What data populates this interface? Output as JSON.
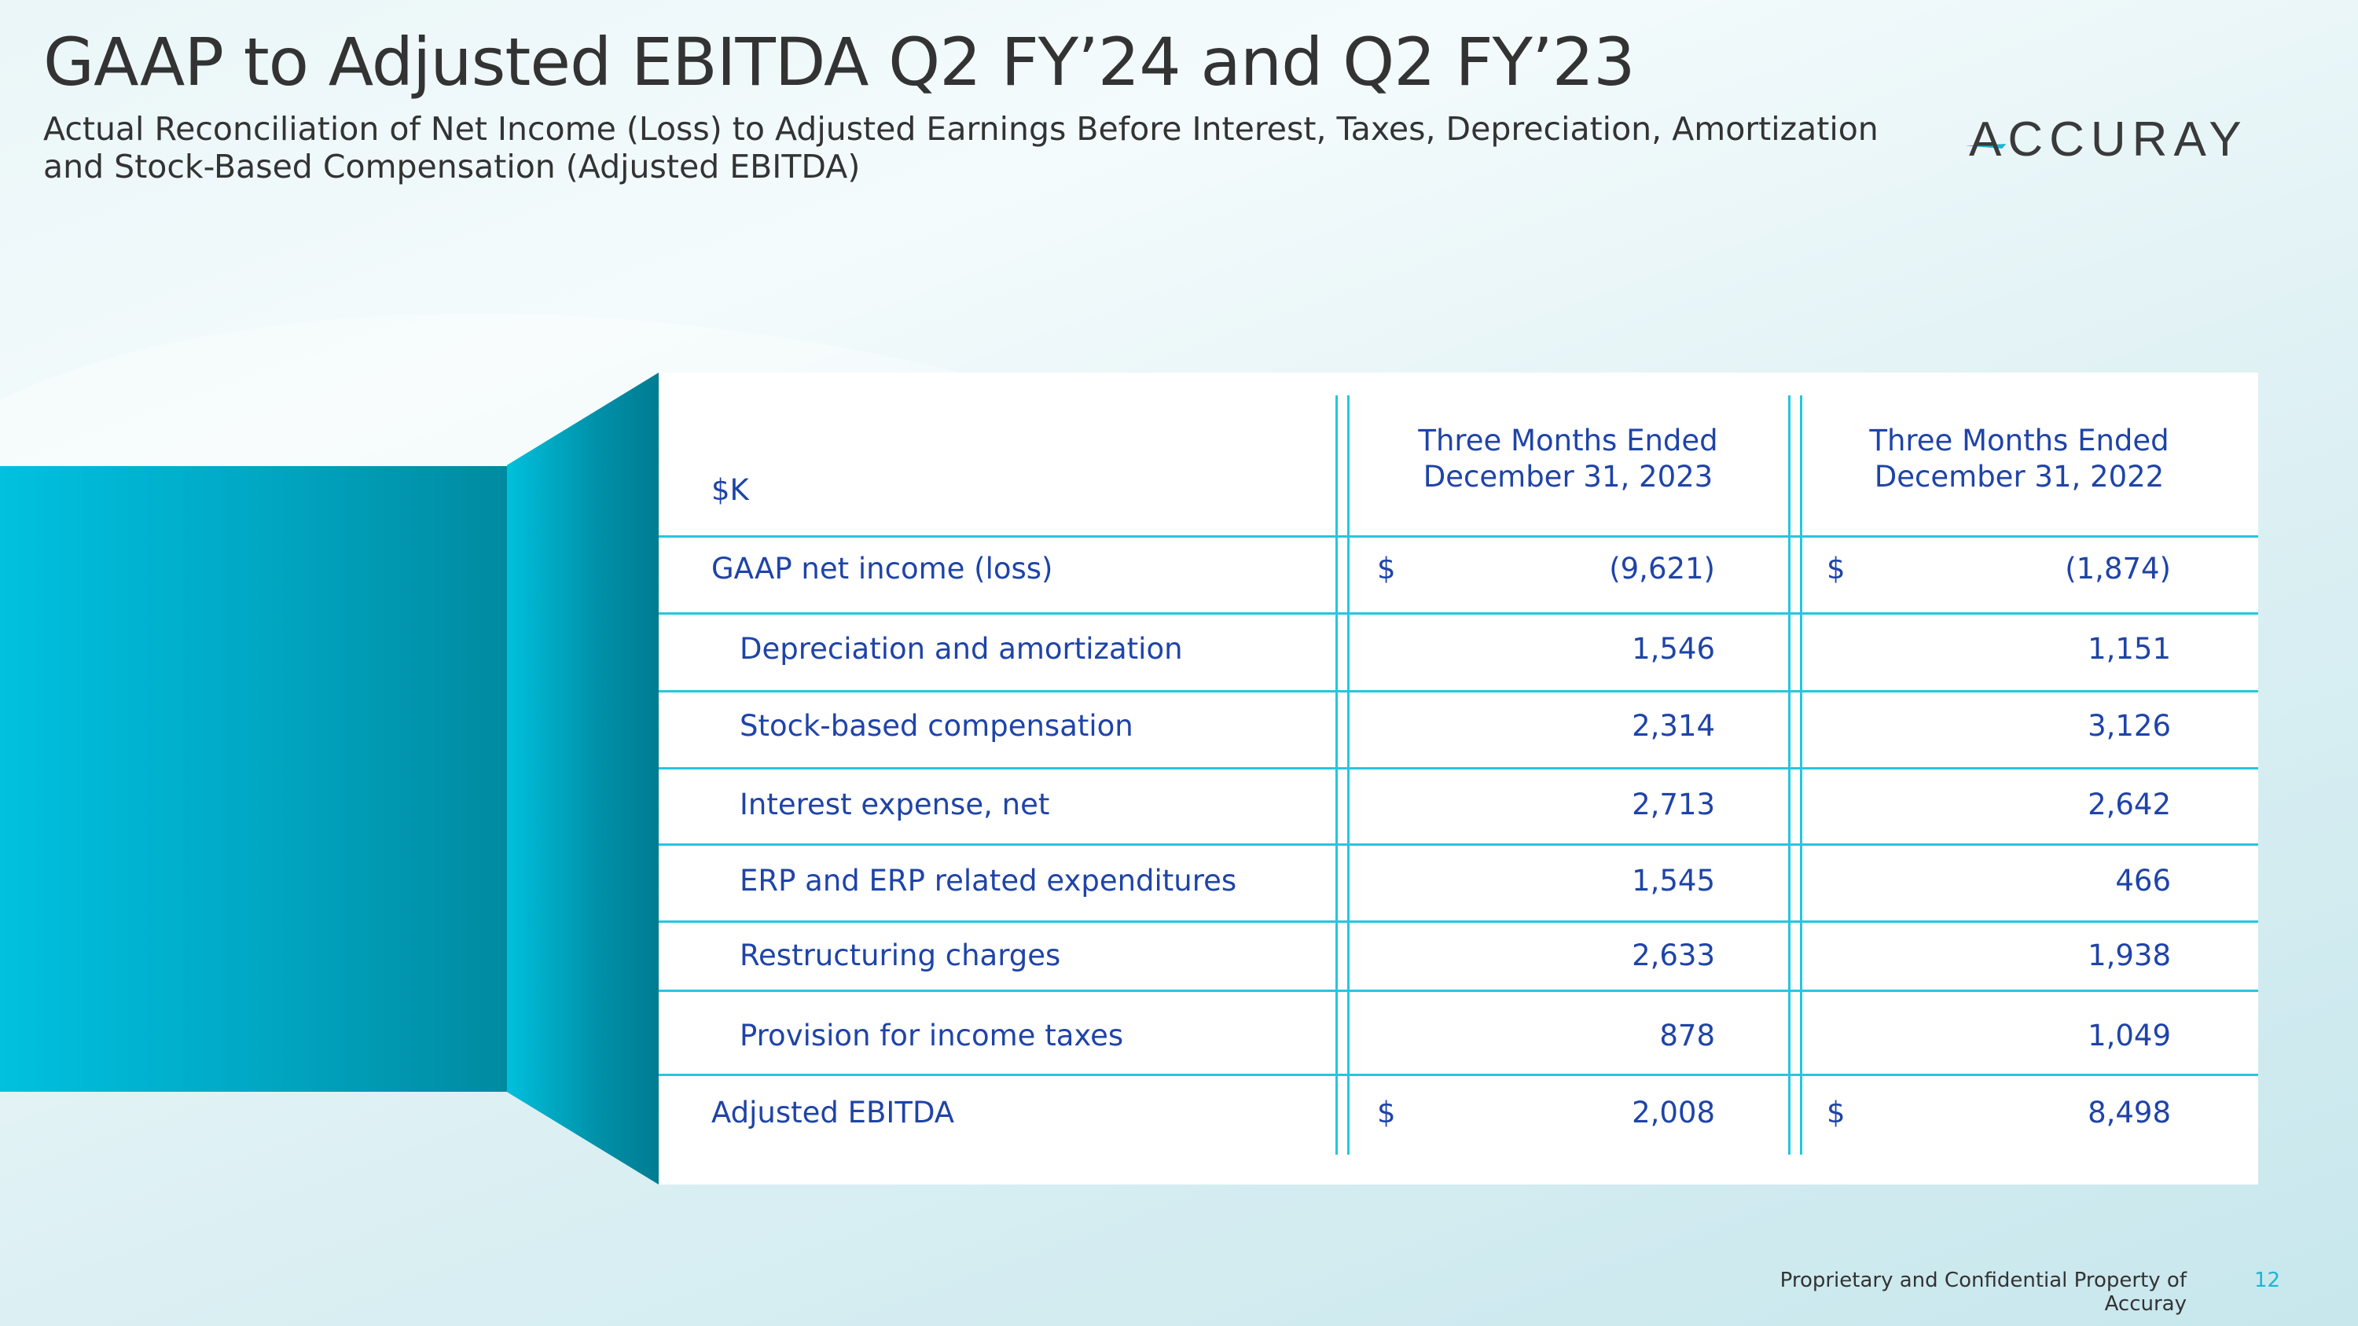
{
  "title": "GAAP to Adjusted EBITDA Q2 FY’24 and Q2 FY’23",
  "subtitle": [
    "Actual Reconciliation of Net Income (Loss) to Adjusted Earnings Before Interest, Taxes, Depreciation, Amortization",
    "and Stock-Based Compensation (Adjusted EBITDA)"
  ],
  "logo": "ACCURAY",
  "colors": {
    "accent": "#00c1df",
    "text_blue": "#1f44a8",
    "rule": "#26c6de"
  },
  "table": {
    "unit_label": "$K",
    "columns": [
      {
        "line1": "Three Months Ended",
        "line2": "December 31, 2023"
      },
      {
        "line1": "Three Months Ended",
        "line2": "December 31, 2022"
      }
    ],
    "rows": [
      {
        "label": "GAAP net income (loss)",
        "cur1": "$",
        "v1": "(9,621)",
        "cur2": "$",
        "v2": "(1,874)"
      },
      {
        "label": "Depreciation and amortization",
        "v1": "1,546",
        "v2": "1,151"
      },
      {
        "label": "Stock-based compensation",
        "v1": "2,314",
        "v2": "3,126"
      },
      {
        "label": "Interest expense, net",
        "v1": "2,713",
        "v2": "2,642"
      },
      {
        "label": "ERP and ERP related expenditures",
        "v1": "1,545",
        "v2": "466"
      },
      {
        "label": "Restructuring charges",
        "v1": "2,633",
        "v2": "1,938"
      },
      {
        "label": "Provision for income taxes",
        "v1": "878",
        "v2": "1,049"
      },
      {
        "label": "Adjusted EBITDA",
        "cur1": "$",
        "v1": "2,008",
        "cur2": "$",
        "v2": "8,498"
      }
    ]
  },
  "footer": {
    "text": "Proprietary and Confidential Property of Accuray",
    "page": "12"
  }
}
